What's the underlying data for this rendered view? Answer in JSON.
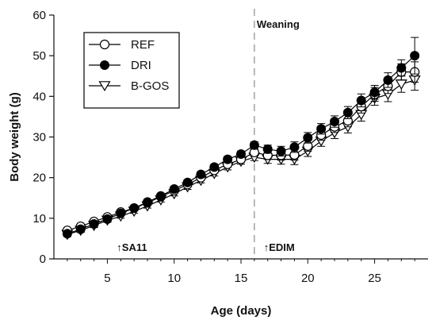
{
  "chart_data": {
    "type": "line",
    "xlabel": "Age (days)",
    "ylabel": "Body weight (g)",
    "xlim": [
      1,
      29
    ],
    "ylim": [
      0,
      60
    ],
    "xticks": [
      5,
      10,
      15,
      20,
      25
    ],
    "yticks": [
      0,
      10,
      20,
      30,
      40,
      50,
      60
    ],
    "grid": false,
    "legend_position": "top-left",
    "x": [
      2,
      3,
      4,
      5,
      6,
      7,
      8,
      9,
      10,
      11,
      12,
      13,
      14,
      15,
      16,
      17,
      18,
      19,
      20,
      21,
      22,
      23,
      24,
      25,
      26,
      27,
      28
    ],
    "series": [
      {
        "name": "REF",
        "marker": "open-circle",
        "values": [
          7.0,
          8.0,
          9.2,
          10.3,
          11.5,
          12.5,
          13.8,
          15.3,
          16.8,
          18.3,
          20.0,
          21.8,
          23.3,
          24.5,
          26.2,
          25.5,
          25.5,
          25.6,
          27.8,
          30.5,
          32.5,
          34.0,
          37.5,
          40.5,
          42.5,
          46.0,
          46.0
        ],
        "errors": [
          0.5,
          0.5,
          0.5,
          0.5,
          0.5,
          0.5,
          0.5,
          0.5,
          0.5,
          0.6,
          0.6,
          0.6,
          0.7,
          0.7,
          0.8,
          1.0,
          1.2,
          1.3,
          1.3,
          1.3,
          1.4,
          1.5,
          1.6,
          1.7,
          1.8,
          2.0,
          2.5
        ]
      },
      {
        "name": "DRI",
        "marker": "filled-circle",
        "values": [
          6.2,
          7.3,
          8.6,
          9.8,
          11.2,
          12.5,
          14.0,
          15.5,
          17.2,
          18.8,
          20.8,
          22.6,
          24.5,
          25.8,
          28.0,
          27.0,
          26.5,
          27.5,
          29.8,
          32.0,
          33.8,
          36.0,
          39.0,
          41.0,
          44.0,
          47.0,
          50.0
        ],
        "errors": [
          0.5,
          0.5,
          0.5,
          0.5,
          0.5,
          0.5,
          0.5,
          0.5,
          0.5,
          0.6,
          0.6,
          0.6,
          0.7,
          0.7,
          0.8,
          1.0,
          1.2,
          1.3,
          1.3,
          1.3,
          1.4,
          1.5,
          1.6,
          1.7,
          1.8,
          2.0,
          4.5
        ]
      },
      {
        "name": "B-GOS",
        "marker": "open-triangle-down",
        "values": [
          6.0,
          7.0,
          8.2,
          9.5,
          10.5,
          11.7,
          13.0,
          14.5,
          16.0,
          17.7,
          19.3,
          21.0,
          22.6,
          24.0,
          25.0,
          24.5,
          24.5,
          24.5,
          26.5,
          29.0,
          31.0,
          32.5,
          35.5,
          39.5,
          40.5,
          43.0,
          44.0
        ],
        "errors": [
          0.5,
          0.5,
          0.5,
          0.5,
          0.5,
          0.5,
          0.5,
          0.5,
          0.5,
          0.6,
          0.6,
          0.6,
          0.7,
          0.7,
          0.8,
          1.0,
          1.2,
          1.3,
          1.3,
          1.3,
          1.4,
          1.5,
          1.6,
          1.7,
          1.8,
          2.0,
          2.5
        ]
      }
    ],
    "vline": {
      "x": 16,
      "label": "Weaning",
      "style": "dashed"
    },
    "annotations": [
      {
        "text": "↑SA11",
        "x": 6
      },
      {
        "text": "↑EDIM",
        "x": 17
      }
    ],
    "colors": {
      "axis": "#111111",
      "vline": "#8a8a8a",
      "marker": "#000000"
    }
  }
}
